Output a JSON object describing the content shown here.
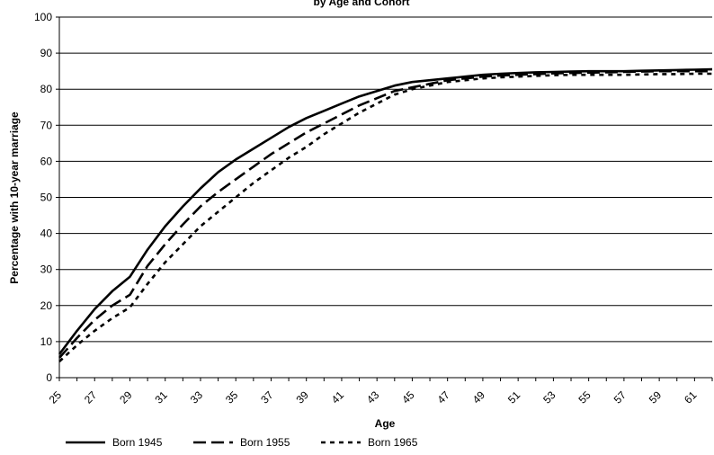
{
  "chart_data": {
    "type": "line",
    "title": "by Age and Cohort",
    "xlabel": "Age",
    "ylabel": "Percentage with 10-year marriage",
    "xlim": [
      25,
      62
    ],
    "ylim": [
      0,
      100
    ],
    "yticks": [
      0,
      10,
      20,
      30,
      40,
      50,
      60,
      70,
      80,
      90,
      100
    ],
    "xtick_labels": [
      "25",
      "27",
      "29",
      "31",
      "33",
      "35",
      "37",
      "39",
      "41",
      "43",
      "45",
      "47",
      "49",
      "51",
      "53",
      "55",
      "57",
      "59",
      "61"
    ],
    "x": [
      25,
      26,
      27,
      28,
      29,
      30,
      31,
      32,
      33,
      34,
      35,
      36,
      37,
      38,
      39,
      40,
      41,
      42,
      43,
      44,
      45,
      46,
      47,
      48,
      49,
      50,
      51,
      52,
      53,
      54,
      55,
      56,
      57,
      58,
      59,
      60,
      61,
      62
    ],
    "grid": "horizontal",
    "legend_position": "bottom",
    "series": [
      {
        "name": "Born 1945",
        "dash": "solid",
        "values": [
          6.5,
          13,
          19,
          24,
          28,
          35.5,
          42,
          47.5,
          52.5,
          57,
          60.5,
          63.5,
          66.5,
          69.5,
          72,
          74,
          76,
          78,
          79.5,
          81,
          82,
          82.5,
          83,
          83.5,
          84,
          84.3,
          84.5,
          84.7,
          84.8,
          84.9,
          85,
          85,
          85,
          85.1,
          85.2,
          85.3,
          85.4,
          85.5
        ]
      },
      {
        "name": "Born 1955",
        "dash": "long-dash",
        "values": [
          5.5,
          11,
          16,
          20,
          23,
          31,
          37,
          42.5,
          47.5,
          51.5,
          55,
          58.5,
          62,
          65,
          68,
          70.5,
          73,
          75.5,
          77.5,
          79.5,
          80.5,
          81.5,
          82.5,
          83,
          83.5,
          83.8,
          84,
          84.2,
          84.4,
          84.5,
          84.6,
          84.7,
          84.8,
          84.9,
          85,
          85,
          85,
          85
        ]
      },
      {
        "name": "Born 1965",
        "dash": "short-dash",
        "values": [
          4.5,
          9,
          13,
          16.5,
          19.5,
          26,
          32,
          37,
          42,
          46,
          50,
          54,
          57.5,
          61,
          64,
          67.5,
          70.5,
          73.5,
          76,
          78.5,
          80,
          81,
          82,
          82.5,
          83,
          83.3,
          83.5,
          83.7,
          83.9,
          84,
          84,
          84,
          84,
          84.1,
          84.2,
          84.2,
          84.3,
          84.3
        ]
      }
    ]
  }
}
